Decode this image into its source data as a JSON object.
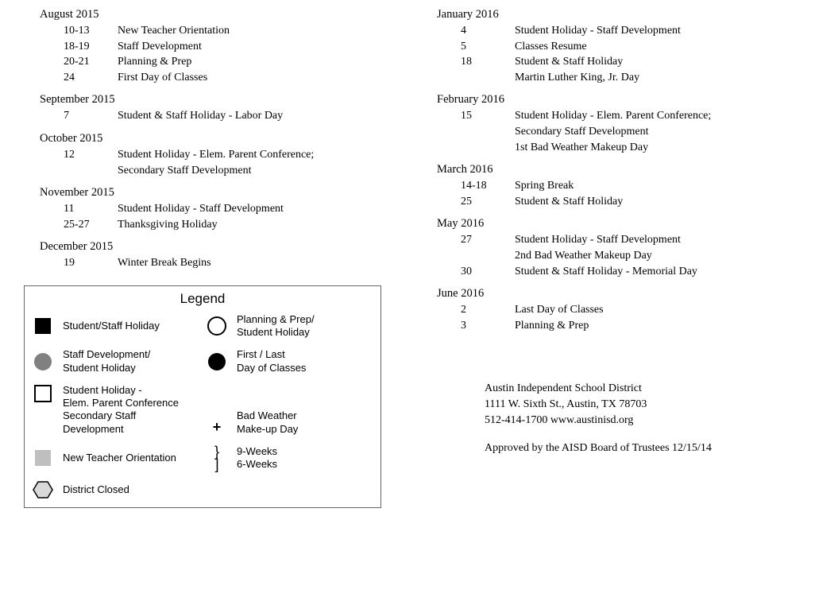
{
  "left_months": [
    {
      "header": "August 2015",
      "events": [
        {
          "date": "10-13",
          "desc": [
            "New Teacher Orientation"
          ]
        },
        {
          "date": "18-19",
          "desc": [
            "Staff Development"
          ]
        },
        {
          "date": "20-21",
          "desc": [
            "Planning & Prep"
          ]
        },
        {
          "date": "24",
          "desc": [
            "First Day of Classes"
          ]
        }
      ]
    },
    {
      "header": "September 2015",
      "events": [
        {
          "date": "7",
          "desc": [
            "Student & Staff Holiday - Labor Day"
          ]
        }
      ]
    },
    {
      "header": "October 2015",
      "events": [
        {
          "date": "12",
          "desc": [
            "Student Holiday - Elem. Parent Conference;",
            "Secondary Staff Development"
          ]
        }
      ]
    },
    {
      "header": "November 2015",
      "events": [
        {
          "date": "11",
          "desc": [
            "Student Holiday - Staff Development"
          ]
        },
        {
          "date": "25-27",
          "desc": [
            "Thanksgiving Holiday"
          ]
        }
      ]
    },
    {
      "header": "December 2015",
      "events": [
        {
          "date": "19",
          "desc": [
            "Winter Break Begins"
          ]
        }
      ]
    }
  ],
  "right_months": [
    {
      "header": "January 2016",
      "events": [
        {
          "date": "4",
          "desc": [
            "Student Holiday - Staff Development"
          ]
        },
        {
          "date": "5",
          "desc": [
            "Classes Resume"
          ]
        },
        {
          "date": "18",
          "desc": [
            "Student & Staff Holiday",
            "Martin Luther King, Jr. Day"
          ]
        }
      ]
    },
    {
      "header": "February 2016",
      "events": [
        {
          "date": "15",
          "desc": [
            "Student Holiday - Elem. Parent Conference;",
            "Secondary Staff Development",
            "1st Bad Weather Makeup Day"
          ]
        }
      ]
    },
    {
      "header": "March 2016",
      "events": [
        {
          "date": "14-18",
          "desc": [
            "Spring Break"
          ]
        },
        {
          "date": "25",
          "desc": [
            "Student & Staff Holiday"
          ]
        }
      ]
    },
    {
      "header": "May 2016",
      "events": [
        {
          "date": "27",
          "desc": [
            "Student Holiday - Staff Development",
            "2nd Bad Weather Makeup Day"
          ]
        },
        {
          "date": "30",
          "desc": [
            "Student & Staff Holiday - Memorial Day"
          ]
        }
      ]
    },
    {
      "header": "June 2016",
      "events": [
        {
          "date": "2",
          "desc": [
            "Last Day of Classes"
          ]
        },
        {
          "date": "3",
          "desc": [
            "Planning & Prep"
          ]
        }
      ]
    }
  ],
  "legend": {
    "title": "Legend",
    "items": [
      {
        "icon": "black-square",
        "text": [
          "Student/Staff Holiday"
        ]
      },
      {
        "icon": "circle-outline",
        "text": [
          "Planning & Prep/",
          "Student Holiday"
        ]
      },
      {
        "icon": "gray-circle",
        "text": [
          "Staff Development/",
          "Student Holiday"
        ]
      },
      {
        "icon": "black-circle",
        "text": [
          "First / Last",
          "Day of Classes"
        ]
      },
      {
        "icon": "square-outline",
        "text": [
          "Student Holiday -",
          "Elem. Parent Conference",
          "Secondary Staff",
          "Development"
        ]
      },
      {
        "icon": "plus",
        "text": [
          "Bad Weather",
          "Make-up Day"
        ],
        "valign": "bottom"
      },
      {
        "icon": "gray-square",
        "text": [
          "New Teacher Orientation"
        ]
      },
      {
        "icon": "braces",
        "text": [
          "9-Weeks",
          "6-Weeks"
        ]
      },
      {
        "icon": "hexagon",
        "text": [
          "District Closed"
        ]
      }
    ]
  },
  "footer": {
    "org": "Austin Independent School District",
    "address": "1111 W. Sixth St., Austin, TX 78703",
    "contact": "512-414-1700  www.austinisd.org",
    "approved": "Approved by the AISD Board of Trustees 12/15/14"
  },
  "colors": {
    "black": "#000000",
    "gray_fill": "#808080",
    "gray_border": "#666666",
    "light_gray": "#bfbfbf",
    "hex_fill": "#d9d9d9"
  }
}
